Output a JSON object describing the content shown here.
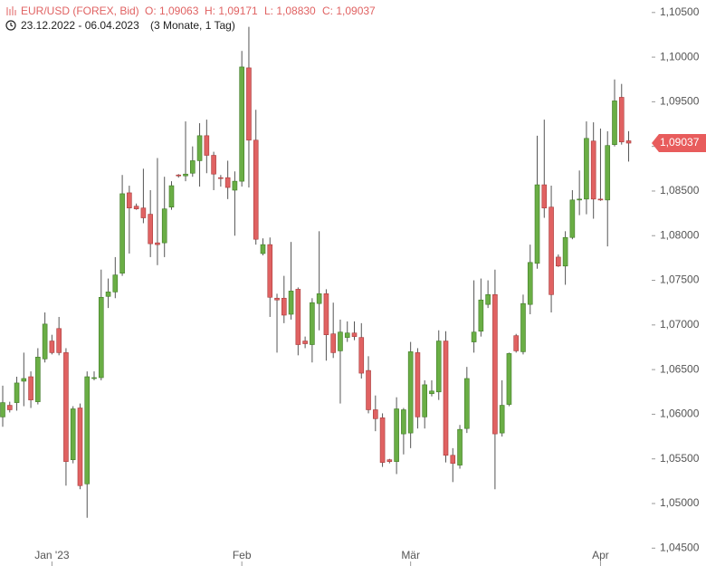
{
  "chart_data": {
    "type": "candlestick",
    "symbol": "EUR/USD (FOREX, Bid)",
    "ohlc_texts": [
      "O: 1,09063",
      "H: 1,09171",
      "L: 1,08830",
      "C: 1,09037"
    ],
    "period": "23.12.2022 - 06.04.2023",
    "span": "(3 Monate, 1 Tag)",
    "up_color": "#6aae45",
    "down_color": "#e06262",
    "categories": [
      null,
      null,
      null,
      null,
      null,
      null,
      null,
      "Jan '23",
      null,
      null,
      null,
      null,
      null,
      null,
      null,
      null,
      null,
      null,
      null,
      null,
      null,
      null,
      null,
      null,
      null,
      null,
      null,
      null,
      null,
      null,
      null,
      null,
      null,
      null,
      "Feb",
      null,
      null,
      null,
      null,
      null,
      null,
      null,
      null,
      null,
      null,
      null,
      null,
      null,
      null,
      null,
      null,
      null,
      null,
      null,
      null,
      null,
      null,
      null,
      "Mär",
      null,
      null,
      null,
      null,
      null,
      null,
      null,
      null,
      null,
      null,
      null,
      null,
      null,
      null,
      null,
      null,
      null,
      null,
      null,
      null,
      null,
      null,
      null,
      null,
      null,
      null,
      "Apr",
      null,
      null,
      null,
      null
    ],
    "open": [
      1.0597,
      1.061,
      1.0613,
      1.0637,
      1.0642,
      1.0614,
      1.0662,
      1.0682,
      1.0696,
      1.0669,
      1.0549,
      1.0607,
      1.0522,
      1.064,
      1.0641,
      1.0732,
      1.0737,
      1.0758,
      1.0848,
      1.0833,
      1.0831,
      1.0824,
      1.0792,
      1.0792,
      1.0832,
      1.0868,
      1.0867,
      1.087,
      1.0884,
      1.0912,
      1.089,
      1.0865,
      1.0865,
      1.0851,
      1.0861,
      1.0988,
      1.0907,
      1.078,
      1.079,
      1.073,
      1.073,
      1.0712,
      1.074,
      1.0682,
      1.0678,
      1.0724,
      1.0735,
      1.069,
      1.0671,
      1.0686,
      1.0691,
      1.0686,
      1.0649,
      1.0605,
      1.0596,
      1.0549,
      1.0547,
      1.0578,
      1.0579,
      1.0669,
      1.0597,
      1.0623,
      1.0625,
      1.0682,
      1.0554,
      1.0543,
      1.0584,
      1.0681,
      1.0693,
      1.0723,
      1.0734,
      1.0579,
      1.0611,
      1.0688,
      1.067,
      1.0723,
      1.0769,
      1.0857,
      1.0832,
      1.0776,
      1.0766,
      1.0798,
      1.084,
      1.0841,
      1.0906,
      1.0841,
      1.084,
      1.0902,
      1.0955,
      1.09063
    ],
    "high": [
      1.0632,
      1.0614,
      1.0642,
      1.0669,
      1.0648,
      1.0674,
      1.0714,
      1.0689,
      1.0709,
      1.0674,
      1.0609,
      1.0612,
      1.0648,
      1.0648,
      1.0762,
      1.0752,
      1.0776,
      1.0868,
      1.0856,
      1.0836,
      1.0875,
      1.0851,
      1.0887,
      1.0866,
      1.0861,
      1.0869,
      1.0928,
      1.09,
      1.0926,
      1.093,
      1.0894,
      1.0868,
      1.0884,
      1.0872,
      1.1007,
      1.1034,
      1.0941,
      1.0797,
      1.0798,
      1.0735,
      1.0755,
      1.0793,
      1.0742,
      1.0687,
      1.073,
      1.0805,
      1.074,
      1.0725,
      1.0706,
      1.0704,
      1.0704,
      1.0702,
      1.0665,
      1.0621,
      1.0601,
      1.055,
      1.0619,
      1.0607,
      1.0681,
      1.0674,
      1.0638,
      1.0638,
      1.0694,
      1.0693,
      1.0562,
      1.0588,
      1.0653,
      1.075,
      1.0752,
      1.075,
      1.0762,
      1.0638,
      1.0669,
      1.069,
      1.0734,
      1.079,
      1.0912,
      1.093,
      1.0856,
      1.0779,
      1.0805,
      1.0851,
      1.0873,
      1.0928,
      1.0927,
      1.092,
      1.0917,
      1.0975,
      1.097,
      1.09171
    ],
    "low": [
      1.0586,
      1.0602,
      1.0604,
      1.0609,
      1.0607,
      1.0611,
      1.0658,
      1.0667,
      1.0666,
      1.052,
      1.0545,
      1.0516,
      1.0484,
      1.0638,
      1.0638,
      1.0719,
      1.073,
      1.0755,
      1.078,
      1.0829,
      1.0814,
      1.0776,
      1.0767,
      1.0776,
      1.0829,
      1.0865,
      1.0861,
      1.0866,
      1.0855,
      1.087,
      1.0851,
      1.0855,
      1.0841,
      1.08,
      1.0855,
      1.0854,
      1.079,
      1.0778,
      1.0709,
      1.0669,
      1.0702,
      1.0706,
      1.0666,
      1.0674,
      1.0658,
      1.0694,
      1.066,
      1.0663,
      1.0612,
      1.0681,
      1.0683,
      1.064,
      1.0601,
      1.0581,
      1.0541,
      1.0545,
      1.0533,
      1.0555,
      1.0562,
      1.0584,
      1.0584,
      1.062,
      1.0616,
      1.0546,
      1.0524,
      1.0539,
      1.0579,
      1.0669,
      1.0687,
      1.0719,
      1.0516,
      1.0575,
      1.0609,
      1.0669,
      1.0667,
      1.0712,
      1.0763,
      1.082,
      1.0714,
      1.0765,
      1.0745,
      1.0796,
      1.0823,
      1.0824,
      1.0819,
      1.0839,
      1.0788,
      1.09,
      1.0902,
      1.0883
    ],
    "close": [
      1.0613,
      1.0605,
      1.0635,
      1.064,
      1.0616,
      1.0664,
      1.0701,
      1.0669,
      1.0669,
      1.0547,
      1.0606,
      1.052,
      1.0642,
      1.0641,
      1.0731,
      1.0737,
      1.0756,
      1.0847,
      1.0831,
      1.083,
      1.082,
      1.0791,
      1.079,
      1.083,
      1.0856,
      1.0867,
      1.0869,
      1.0884,
      1.0912,
      1.089,
      1.0869,
      1.0864,
      1.0854,
      1.0861,
      1.0989,
      1.0907,
      1.0796,
      1.079,
      1.0731,
      1.0728,
      1.0711,
      1.0738,
      1.0678,
      1.0679,
      1.0725,
      1.0735,
      1.0689,
      1.0669,
      1.0692,
      1.0691,
      1.0687,
      1.0646,
      1.0605,
      1.0595,
      1.0546,
      1.0547,
      1.0606,
      1.0605,
      1.067,
      1.0597,
      1.0633,
      1.0626,
      1.0682,
      1.0554,
      1.0545,
      1.0583,
      1.064,
      1.0692,
      1.0728,
      1.0734,
      1.0578,
      1.061,
      1.0668,
      1.0671,
      1.0724,
      1.077,
      1.0857,
      1.0831,
      1.0734,
      1.0766,
      1.0798,
      1.084,
      1.0841,
      1.0909,
      1.0841,
      1.084,
      1.0901,
      1.0951,
      1.0905,
      1.09037
    ],
    "close_label": "1,09037",
    "ylim": [
      1.043,
      1.1064
    ],
    "yticks": [
      {
        "value": 1.105,
        "label": "1,10500"
      },
      {
        "value": 1.1,
        "label": "1,10000"
      },
      {
        "value": 1.095,
        "label": "1,09500"
      },
      {
        "value": 1.09,
        "label": "1,09000"
      },
      {
        "value": 1.085,
        "label": "1,08500"
      },
      {
        "value": 1.08,
        "label": "1,08000"
      },
      {
        "value": 1.075,
        "label": "1,07500"
      },
      {
        "value": 1.07,
        "label": "1,07000"
      },
      {
        "value": 1.065,
        "label": "1,06500"
      },
      {
        "value": 1.06,
        "label": "1,06000"
      },
      {
        "value": 1.055,
        "label": "1,05500"
      },
      {
        "value": 1.05,
        "label": "1,05000"
      },
      {
        "value": 1.045,
        "label": "1,04500"
      }
    ]
  }
}
